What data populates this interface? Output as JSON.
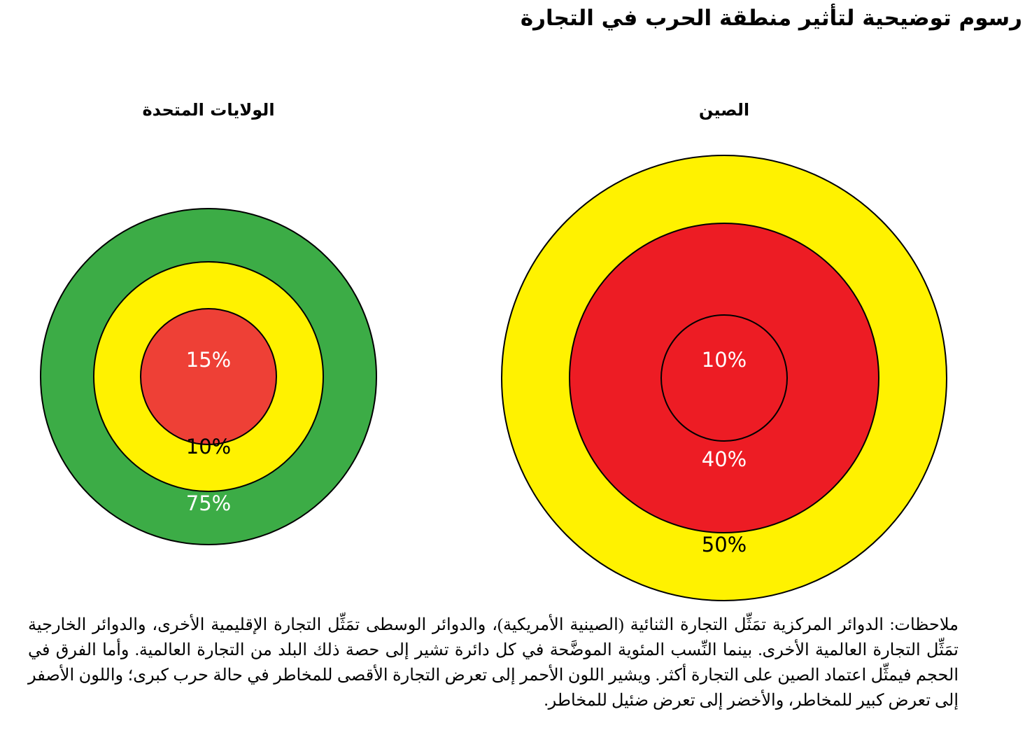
{
  "title": "رسوم توضيحية لتأثير منطقة الحرب في التجارة",
  "charts": [
    {
      "id": "us",
      "title": "الولايات المتحدة",
      "rings": [
        {
          "label": "75%",
          "color": "#3cac46",
          "text_color": "#ffffff"
        },
        {
          "label": "10%",
          "color": "#fff200",
          "text_color": "#000000"
        },
        {
          "label": "15%",
          "color": "#ee4036",
          "text_color": "#ffffff"
        }
      ]
    },
    {
      "id": "china",
      "title": "الصين",
      "rings": [
        {
          "label": "50%",
          "color": "#fff200",
          "text_color": "#000000"
        },
        {
          "label": "40%",
          "color": "#ed1c24",
          "text_color": "#ffffff"
        },
        {
          "label": "10%",
          "color": "#ed1c24",
          "text_color": "#ffffff"
        }
      ]
    }
  ],
  "notes": "ملاحظات: الدوائر المركزية تمَثِّل التجارة الثنائية (الصينية الأمريكية)، والدوائر الوسطى تمَثِّل التجارة الإقليمية الأخرى، والدوائر الخارجية تمَثِّل التجارة العالمية الأخرى. بينما النِّسب المئوية الموضَّحة في كل دائرة تشير إلى حصة ذلك البلد من التجارة العالمية. وأما الفرق في الحجم فيمثِّل اعتماد الصين على التجارة أكثر. ويشير اللون الأحمر إلى تعرض التجارة الأقصى للمخاطر في حالة حرب كبرى؛ واللون الأصفر إلى تعرض كبير للمخاطر، والأخضر إلى تعرض ضئيل للمخاطر."
}
